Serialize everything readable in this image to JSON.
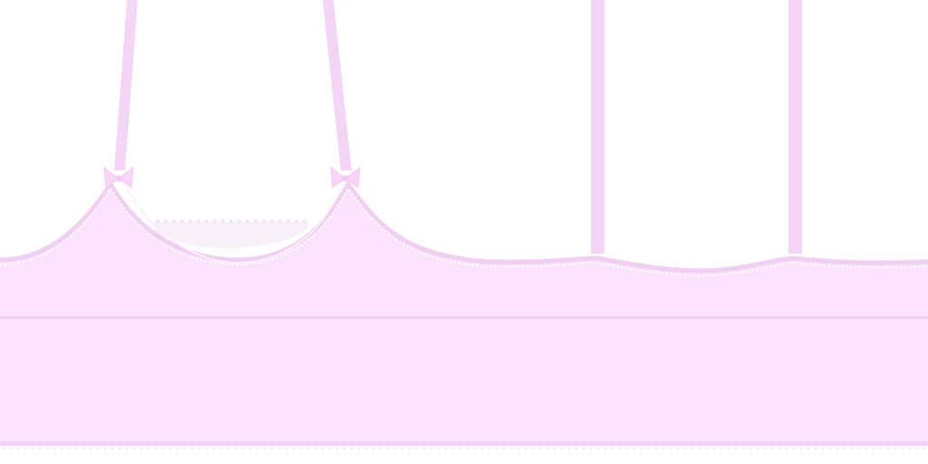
{
  "colors": {
    "background": "#ffffff",
    "fabric": "#fbe4fb",
    "fabric_light": "#fcebfc",
    "trim": "#f2d2f4",
    "strap": "#f3d6f6",
    "bow": "#f8d9f6",
    "lace": "#f4ecf6"
  },
  "icons": {
    "bow_left": "bow-icon",
    "bow_right": "bow-icon"
  }
}
